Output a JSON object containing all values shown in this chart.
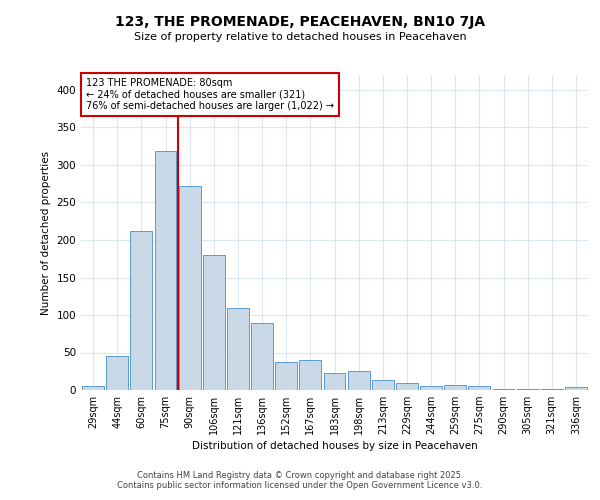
{
  "title": "123, THE PROMENADE, PEACEHAVEN, BN10 7JA",
  "subtitle": "Size of property relative to detached houses in Peacehaven",
  "xlabel": "Distribution of detached houses by size in Peacehaven",
  "ylabel": "Number of detached properties",
  "categories": [
    "29sqm",
    "44sqm",
    "60sqm",
    "75sqm",
    "90sqm",
    "106sqm",
    "121sqm",
    "136sqm",
    "152sqm",
    "167sqm",
    "183sqm",
    "198sqm",
    "213sqm",
    "229sqm",
    "244sqm",
    "259sqm",
    "275sqm",
    "290sqm",
    "305sqm",
    "321sqm",
    "336sqm"
  ],
  "values": [
    5,
    45,
    212,
    318,
    272,
    180,
    110,
    90,
    38,
    40,
    23,
    25,
    13,
    10,
    6,
    7,
    5,
    2,
    1,
    1,
    4
  ],
  "bar_color": "#c9d9e8",
  "bar_edge_color": "#5b9bd5",
  "red_line_x": 3.5,
  "annotation_line1": "123 THE PROMENADE: 80sqm",
  "annotation_line2": "← 24% of detached houses are smaller (321)",
  "annotation_line3": "76% of semi-detached houses are larger (1,022) →",
  "annotation_box_color": "#ffffff",
  "annotation_box_edge": "#cc0000",
  "red_line_color": "#cc0000",
  "grid_color": "#dce6f1",
  "background_color": "#ffffff",
  "ylim": [
    0,
    420
  ],
  "footer1": "Contains HM Land Registry data © Crown copyright and database right 2025.",
  "footer2": "Contains public sector information licensed under the Open Government Licence v3.0."
}
